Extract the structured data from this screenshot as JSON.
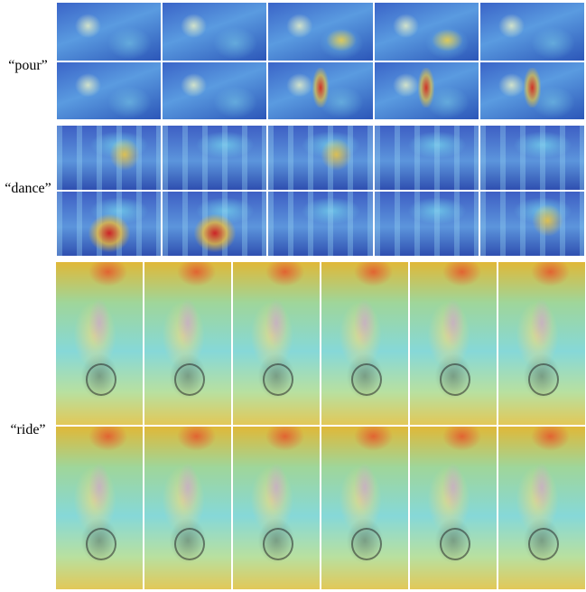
{
  "labels": {
    "pour": "“pour”",
    "dance": "“dance”",
    "ride": "“ride”"
  },
  "colors": {
    "cold": "#3a64c8",
    "mid": "#86d8d8",
    "warm": "#f0c838",
    "hot": "#d62818"
  }
}
